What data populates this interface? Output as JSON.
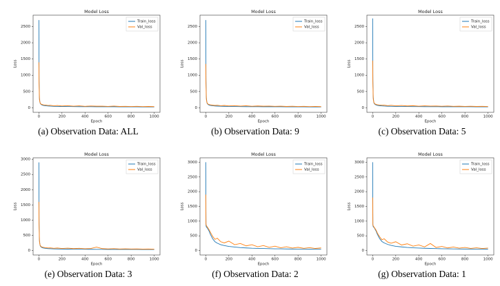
{
  "chart_data": [
    {
      "type": "line",
      "title": "Model Loss",
      "x_label": "Epoch",
      "y_label": "Loss",
      "caption": "(a)  Observation Data:  ALL",
      "x": [
        0,
        2,
        5,
        10,
        15,
        20,
        30,
        40,
        60,
        80,
        100,
        130,
        160,
        200,
        250,
        300,
        350,
        400,
        450,
        500,
        550,
        600,
        650,
        700,
        750,
        800,
        850,
        900,
        950,
        1000
      ],
      "xlim": [
        -50,
        1050
      ],
      "xticks": [
        0,
        200,
        400,
        600,
        800,
        1000
      ],
      "ylim": [
        -140,
        2850
      ],
      "yticks": [
        0,
        500,
        1000,
        1500,
        2000,
        2500
      ],
      "legend": "upper right",
      "series": [
        {
          "name": "Train_loss",
          "color": "#1f77b4",
          "values": [
            2700,
            800,
            300,
            150,
            120,
            100,
            80,
            70,
            60,
            55,
            50,
            45,
            42,
            40,
            38,
            36,
            35,
            34,
            33,
            32,
            31,
            30,
            30,
            29,
            29,
            28,
            28,
            27,
            27,
            26
          ]
        },
        {
          "name": "Val_loss",
          "color": "#ff7f0e",
          "values": [
            1400,
            700,
            250,
            160,
            130,
            110,
            100,
            90,
            85,
            70,
            75,
            60,
            70,
            55,
            65,
            50,
            60,
            45,
            55,
            48,
            50,
            42,
            52,
            40,
            45,
            38,
            44,
            36,
            40,
            35
          ]
        }
      ]
    },
    {
      "type": "line",
      "title": "Model Loss",
      "x_label": "Epoch",
      "y_label": "Loss",
      "caption": "(b)  Observation Data:  9",
      "x": [
        0,
        2,
        5,
        10,
        15,
        20,
        30,
        40,
        60,
        80,
        100,
        130,
        160,
        200,
        250,
        300,
        350,
        400,
        450,
        500,
        550,
        600,
        650,
        700,
        750,
        800,
        850,
        900,
        950,
        1000
      ],
      "xlim": [
        -50,
        1050
      ],
      "xticks": [
        0,
        200,
        400,
        600,
        800,
        1000
      ],
      "ylim": [
        -140,
        2850
      ],
      "yticks": [
        0,
        500,
        1000,
        1500,
        2000,
        2500
      ],
      "legend": "upper right",
      "series": [
        {
          "name": "Train_loss",
          "color": "#1f77b4",
          "values": [
            2700,
            820,
            310,
            155,
            122,
            102,
            82,
            71,
            62,
            56,
            51,
            46,
            43,
            41,
            39,
            37,
            35,
            34,
            33,
            32,
            31,
            30,
            30,
            29,
            29,
            28,
            28,
            27,
            27,
            26
          ]
        },
        {
          "name": "Val_loss",
          "color": "#ff7f0e",
          "values": [
            1350,
            720,
            260,
            165,
            135,
            112,
            100,
            92,
            80,
            72,
            78,
            62,
            72,
            58,
            66,
            52,
            62,
            46,
            56,
            48,
            52,
            44,
            50,
            40,
            46,
            38,
            45,
            36,
            42,
            35
          ]
        }
      ]
    },
    {
      "type": "line",
      "title": "Model Loss",
      "x_label": "Epoch",
      "y_label": "Loss",
      "caption": "(c)  Observation Data:  5",
      "x": [
        0,
        2,
        5,
        10,
        15,
        20,
        30,
        40,
        60,
        80,
        100,
        130,
        160,
        200,
        250,
        300,
        350,
        400,
        450,
        500,
        550,
        600,
        650,
        700,
        750,
        800,
        850,
        900,
        950,
        1000
      ],
      "xlim": [
        -50,
        1050
      ],
      "xticks": [
        0,
        200,
        400,
        600,
        800,
        1000
      ],
      "ylim": [
        -140,
        2850
      ],
      "yticks": [
        0,
        500,
        1000,
        1500,
        2000,
        2500
      ],
      "legend": "upper right",
      "series": [
        {
          "name": "Train_loss",
          "color": "#1f77b4",
          "values": [
            2750,
            830,
            320,
            160,
            125,
            105,
            85,
            74,
            64,
            58,
            53,
            48,
            45,
            43,
            41,
            39,
            37,
            36,
            35,
            34,
            33,
            32,
            32,
            31,
            31,
            30,
            30,
            29,
            29,
            28
          ]
        },
        {
          "name": "Val_loss",
          "color": "#ff7f0e",
          "values": [
            1450,
            740,
            270,
            170,
            140,
            118,
            105,
            95,
            85,
            78,
            80,
            66,
            75,
            60,
            70,
            56,
            64,
            50,
            60,
            52,
            55,
            46,
            54,
            44,
            48,
            42,
            47,
            40,
            44,
            38
          ]
        }
      ]
    },
    {
      "type": "line",
      "title": "Model Loss",
      "x_label": "Epoch",
      "y_label": "Loss",
      "caption": "(e)  Observation Data:  3",
      "x": [
        0,
        2,
        5,
        10,
        15,
        20,
        30,
        40,
        60,
        80,
        100,
        130,
        160,
        200,
        250,
        300,
        350,
        400,
        450,
        500,
        550,
        600,
        650,
        700,
        750,
        800,
        850,
        900,
        950,
        1000
      ],
      "xlim": [
        -50,
        1050
      ],
      "xticks": [
        0,
        200,
        400,
        600,
        800,
        1000
      ],
      "ylim": [
        -150,
        3050
      ],
      "yticks": [
        0,
        500,
        1000,
        1500,
        2000,
        2500,
        3000
      ],
      "legend": "upper right",
      "series": [
        {
          "name": "Train_loss",
          "color": "#1f77b4",
          "values": [
            2900,
            850,
            340,
            170,
            130,
            110,
            90,
            78,
            68,
            60,
            55,
            50,
            47,
            45,
            43,
            41,
            39,
            38,
            37,
            36,
            35,
            34,
            34,
            33,
            33,
            32,
            32,
            31,
            31,
            30
          ]
        },
        {
          "name": "Val_loss",
          "color": "#ff7f0e",
          "values": [
            1600,
            800,
            300,
            180,
            150,
            125,
            110,
            100,
            90,
            82,
            85,
            70,
            80,
            65,
            75,
            60,
            70,
            55,
            65,
            110,
            60,
            50,
            58,
            48,
            52,
            46,
            50,
            44,
            48,
            42
          ]
        }
      ]
    },
    {
      "type": "line",
      "title": "Model Loss",
      "x_label": "Epoch",
      "y_label": "Loss",
      "caption": "(f)  Observation Data:  2",
      "x": [
        0,
        2,
        5,
        10,
        15,
        20,
        30,
        40,
        60,
        80,
        100,
        130,
        160,
        200,
        250,
        300,
        350,
        400,
        450,
        500,
        550,
        600,
        650,
        700,
        750,
        800,
        850,
        900,
        950,
        1000
      ],
      "xlim": [
        -50,
        1050
      ],
      "xticks": [
        0,
        200,
        400,
        600,
        800,
        1000
      ],
      "ylim": [
        -150,
        3150
      ],
      "yticks": [
        0,
        500,
        1000,
        1500,
        2000,
        2500,
        3000
      ],
      "legend": "upper right",
      "series": [
        {
          "name": "Train_loss",
          "color": "#1f77b4",
          "values": [
            3000,
            850,
            800,
            780,
            760,
            720,
            650,
            550,
            400,
            300,
            250,
            200,
            170,
            140,
            120,
            100,
            90,
            80,
            75,
            70,
            65,
            60,
            58,
            55,
            52,
            50,
            48,
            46,
            45,
            44
          ]
        },
        {
          "name": "Val_loss",
          "color": "#ff7f0e",
          "values": [
            1900,
            900,
            850,
            820,
            790,
            760,
            700,
            620,
            480,
            380,
            420,
            300,
            260,
            320,
            200,
            240,
            160,
            200,
            130,
            170,
            110,
            150,
            95,
            130,
            85,
            110,
            78,
            100,
            72,
            90
          ]
        }
      ]
    },
    {
      "type": "line",
      "title": "Model Loss",
      "x_label": "Epoch",
      "y_label": "Loss",
      "caption": "(g)  Observation Data:  1",
      "x": [
        0,
        2,
        5,
        10,
        15,
        20,
        30,
        40,
        60,
        80,
        100,
        130,
        160,
        200,
        250,
        300,
        350,
        400,
        450,
        500,
        550,
        600,
        650,
        700,
        750,
        800,
        850,
        900,
        950,
        1000
      ],
      "xlim": [
        -50,
        1050
      ],
      "xticks": [
        0,
        200,
        400,
        600,
        800,
        1000
      ],
      "ylim": [
        -150,
        3150
      ],
      "yticks": [
        0,
        500,
        1000,
        1500,
        2000,
        2500,
        3000
      ],
      "legend": "upper right",
      "series": [
        {
          "name": "Train_loss",
          "color": "#1f77b4",
          "values": [
            3000,
            860,
            810,
            790,
            770,
            730,
            660,
            560,
            410,
            310,
            260,
            210,
            175,
            145,
            125,
            105,
            95,
            85,
            78,
            72,
            68,
            63,
            60,
            57,
            54,
            52,
            50,
            48,
            47,
            46
          ]
        },
        {
          "name": "Val_loss",
          "color": "#ff7f0e",
          "values": [
            1800,
            880,
            840,
            810,
            780,
            750,
            690,
            600,
            470,
            370,
            400,
            290,
            250,
            300,
            190,
            230,
            150,
            190,
            125,
            240,
            105,
            140,
            90,
            120,
            82,
            105,
            75,
            95,
            70,
            85
          ]
        }
      ]
    }
  ]
}
